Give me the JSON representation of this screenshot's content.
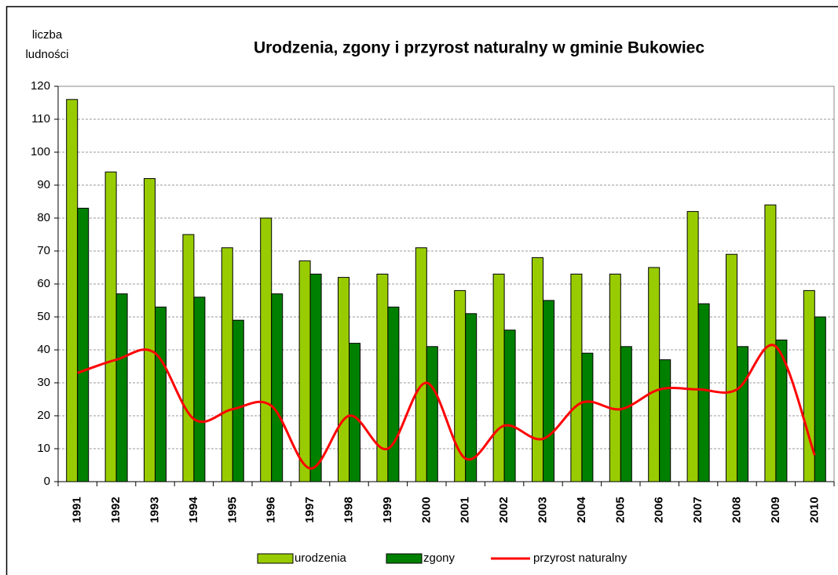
{
  "chart_data": {
    "type": "bar",
    "title": "Urodzenia, zgony i przyrost naturalny w gminie Bukowiec",
    "y_label": [
      "liczba",
      "ludności"
    ],
    "categories": [
      "1991",
      "1992",
      "1993",
      "1994",
      "1995",
      "1996",
      "1997",
      "1998",
      "1999",
      "2000",
      "2001",
      "2002",
      "2003",
      "2004",
      "2005",
      "2006",
      "2007",
      "2008",
      "2009",
      "2010"
    ],
    "series": [
      {
        "name": "urodzenia",
        "type": "bar",
        "color": "#99cc00",
        "values": [
          116,
          94,
          92,
          75,
          71,
          80,
          67,
          62,
          63,
          71,
          58,
          63,
          68,
          63,
          63,
          65,
          82,
          69,
          84,
          58
        ]
      },
      {
        "name": "zgony",
        "type": "bar",
        "color": "#008000",
        "values": [
          83,
          57,
          53,
          56,
          49,
          57,
          63,
          42,
          53,
          41,
          51,
          46,
          55,
          39,
          41,
          37,
          54,
          41,
          43,
          50
        ]
      },
      {
        "name": "przyrost naturalny",
        "type": "line",
        "color": "#ff0000",
        "values": [
          33,
          37,
          39,
          19,
          22,
          23,
          4,
          20,
          10,
          30,
          7,
          17,
          13,
          24,
          22,
          28,
          28,
          28,
          41,
          8
        ]
      }
    ],
    "ylim": [
      0,
      120
    ],
    "yticks": [
      0,
      10,
      20,
      30,
      40,
      50,
      60,
      70,
      80,
      90,
      100,
      110,
      120
    ],
    "grid": true,
    "legend": "bottom"
  }
}
